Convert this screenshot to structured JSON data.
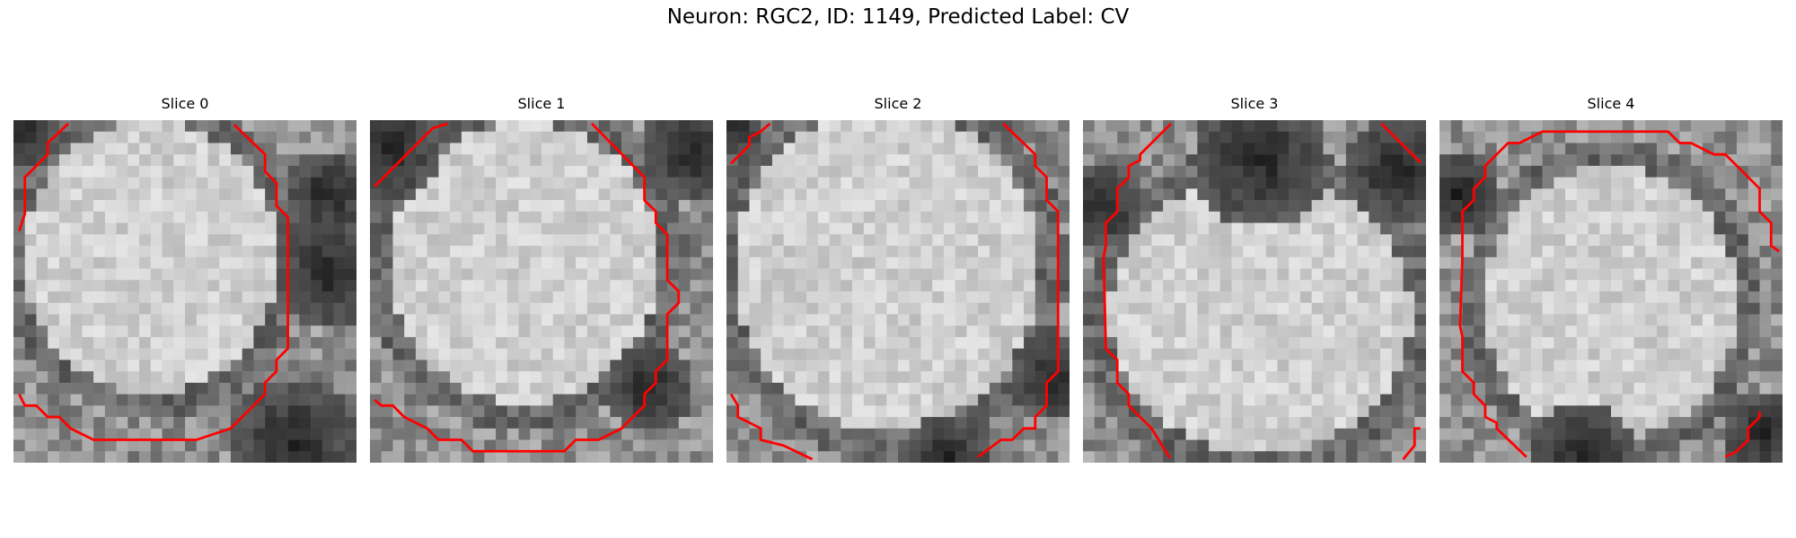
{
  "figure": {
    "title": "Neuron: RGC2, ID: 1149, Predicted Label: CV"
  },
  "panels": [
    {
      "title": "Slice 0"
    },
    {
      "title": "Slice 1"
    },
    {
      "title": "Slice 2"
    },
    {
      "title": "Slice 3"
    },
    {
      "title": "Slice 4"
    }
  ],
  "colors": {
    "contour": "#ff0000",
    "background": "#ffffff",
    "image_colormap": "grayscale"
  }
}
